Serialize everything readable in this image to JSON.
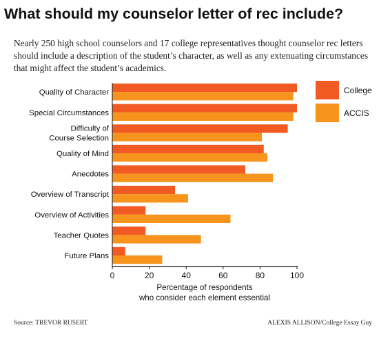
{
  "header": {
    "title": "What should my counselor letter of rec include?",
    "subtitle": "Nearly 250 high school counselors and 17 college representatives thought counselor rec letters should include a description of the student’s character, as well as any extenuating circumstances that might affect the student’s academics."
  },
  "footer": {
    "source": "Source: TREVOR RUSERT",
    "credit": "ALEXIS ALLISON/College Essay Guy"
  },
  "chart_data": {
    "type": "bar",
    "orientation": "horizontal",
    "categories": [
      [
        "Quality of Character"
      ],
      [
        "Special Circumstances"
      ],
      [
        "Difficulty of",
        "Course Selection"
      ],
      [
        "Quality of Mind"
      ],
      [
        "Anecdotes"
      ],
      [
        "Overview of Transcript"
      ],
      [
        "Overview of Activities"
      ],
      [
        "Teacher Quotes"
      ],
      [
        "Future Plans"
      ]
    ],
    "series": [
      {
        "name": "College",
        "color": "#f25a24",
        "values": [
          100,
          100,
          95,
          82,
          72,
          34,
          18,
          18,
          7
        ]
      },
      {
        "name": "ACCIS",
        "color": "#f7941d",
        "values": [
          98,
          98,
          81,
          84,
          87,
          41,
          64,
          48,
          27
        ]
      }
    ],
    "xlim": [
      0,
      100
    ],
    "xticks": [
      0,
      20,
      40,
      60,
      80,
      100
    ],
    "xlabel": [
      "Percentage of respondents",
      "who consider each element essential"
    ],
    "grid": false,
    "legend_position": "top-right"
  }
}
